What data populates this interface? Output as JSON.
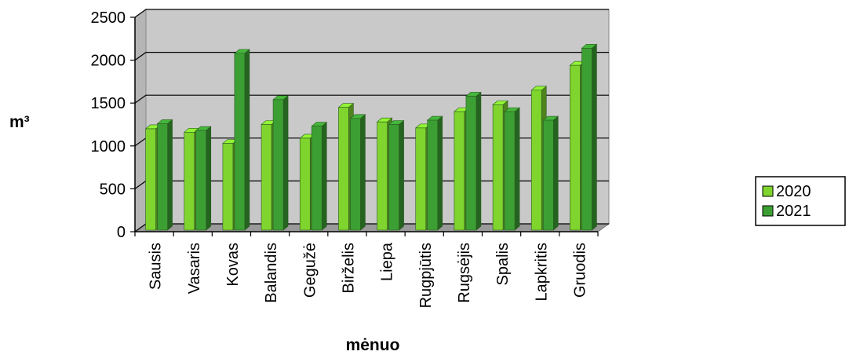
{
  "chart_data": {
    "type": "bar",
    "categories": [
      "Sausis",
      "Vasaris",
      "Kovas",
      "Balandis",
      "Gegužė",
      "Birželis",
      "Liepa",
      "Rugpjūtis",
      "Rugsėjis",
      "Spalis",
      "Lapkritis",
      "Gruodis"
    ],
    "series": [
      {
        "name": "2020",
        "values": [
          1200,
          1160,
          1030,
          1250,
          1090,
          1450,
          1280,
          1210,
          1400,
          1480,
          1650,
          1940
        ],
        "color": "#7fd42e"
      },
      {
        "name": "2021",
        "values": [
          1260,
          1180,
          2080,
          1540,
          1230,
          1320,
          1250,
          1300,
          1580,
          1400,
          1300,
          2140
        ],
        "color": "#3c9f34"
      }
    ],
    "title": "",
    "xlabel": "mėnuo",
    "ylabel": "m³",
    "ylim": [
      0,
      2500
    ],
    "yticks": [
      0,
      500,
      1000,
      1500,
      2000,
      2500
    ],
    "grid": true,
    "legend_position": "right",
    "plot_background": "#c9c9c9"
  }
}
